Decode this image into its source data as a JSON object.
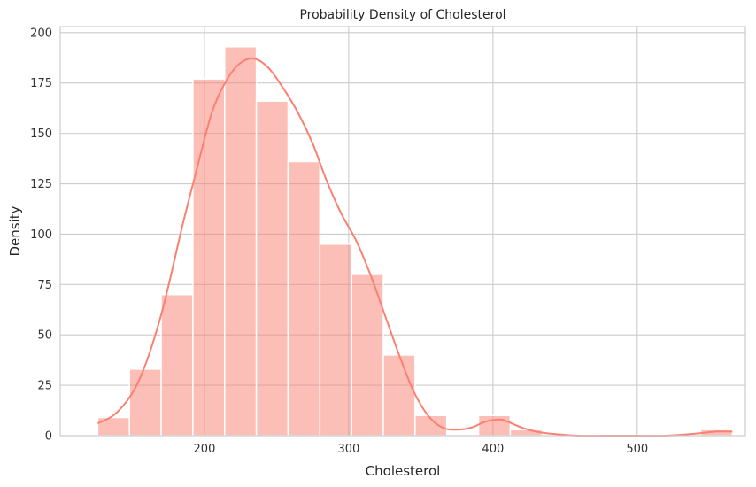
{
  "chart_data": {
    "type": "bar",
    "title": "Probability Density of Cholesterol",
    "xlabel": "Cholesterol",
    "ylabel": "Density",
    "xlim": [
      100,
      575
    ],
    "ylim": [
      0,
      203
    ],
    "x_ticks": [
      200,
      300,
      400,
      500
    ],
    "y_ticks": [
      0,
      25,
      50,
      75,
      100,
      125,
      150,
      175,
      200
    ],
    "grid": true,
    "bar_color": "#fa8072",
    "line_color": "#fa8072",
    "bins": [
      {
        "x0": 126,
        "x1": 148,
        "value": 9
      },
      {
        "x0": 148,
        "x1": 170,
        "value": 33
      },
      {
        "x0": 170,
        "x1": 192,
        "value": 70
      },
      {
        "x0": 192,
        "x1": 214,
        "value": 177
      },
      {
        "x0": 214,
        "x1": 236,
        "value": 193
      },
      {
        "x0": 236,
        "x1": 258,
        "value": 166
      },
      {
        "x0": 258,
        "x1": 280,
        "value": 136
      },
      {
        "x0": 280,
        "x1": 302,
        "value": 95
      },
      {
        "x0": 302,
        "x1": 324,
        "value": 80
      },
      {
        "x0": 324,
        "x1": 346,
        "value": 40
      },
      {
        "x0": 346,
        "x1": 368,
        "value": 10
      },
      {
        "x0": 368,
        "x1": 390,
        "value": 0
      },
      {
        "x0": 390,
        "x1": 412,
        "value": 10
      },
      {
        "x0": 412,
        "x1": 434,
        "value": 3
      },
      {
        "x0": 434,
        "x1": 456,
        "value": 0
      },
      {
        "x0": 456,
        "x1": 478,
        "value": 0
      },
      {
        "x0": 478,
        "x1": 500,
        "value": 0
      },
      {
        "x0": 500,
        "x1": 522,
        "value": 0
      },
      {
        "x0": 522,
        "x1": 544,
        "value": 0
      },
      {
        "x0": 544,
        "x1": 566,
        "value": 3
      }
    ],
    "kde": {
      "x": [
        126,
        140,
        155,
        170,
        185,
        195,
        205,
        215,
        225,
        235,
        245,
        255,
        265,
        275,
        285,
        295,
        305,
        315,
        325,
        335,
        345,
        355,
        365,
        375,
        385,
        395,
        405,
        410,
        420,
        430,
        440,
        460,
        480,
        500,
        520,
        540,
        555,
        566
      ],
      "y": [
        6,
        12,
        28,
        60,
        105,
        133,
        160,
        176,
        185,
        187,
        182,
        172,
        160,
        145,
        126,
        110,
        97,
        80,
        60,
        40,
        22,
        10,
        4,
        3,
        4,
        7,
        8,
        7,
        4,
        2,
        1,
        0,
        0,
        0,
        0,
        1,
        2,
        2
      ]
    }
  }
}
